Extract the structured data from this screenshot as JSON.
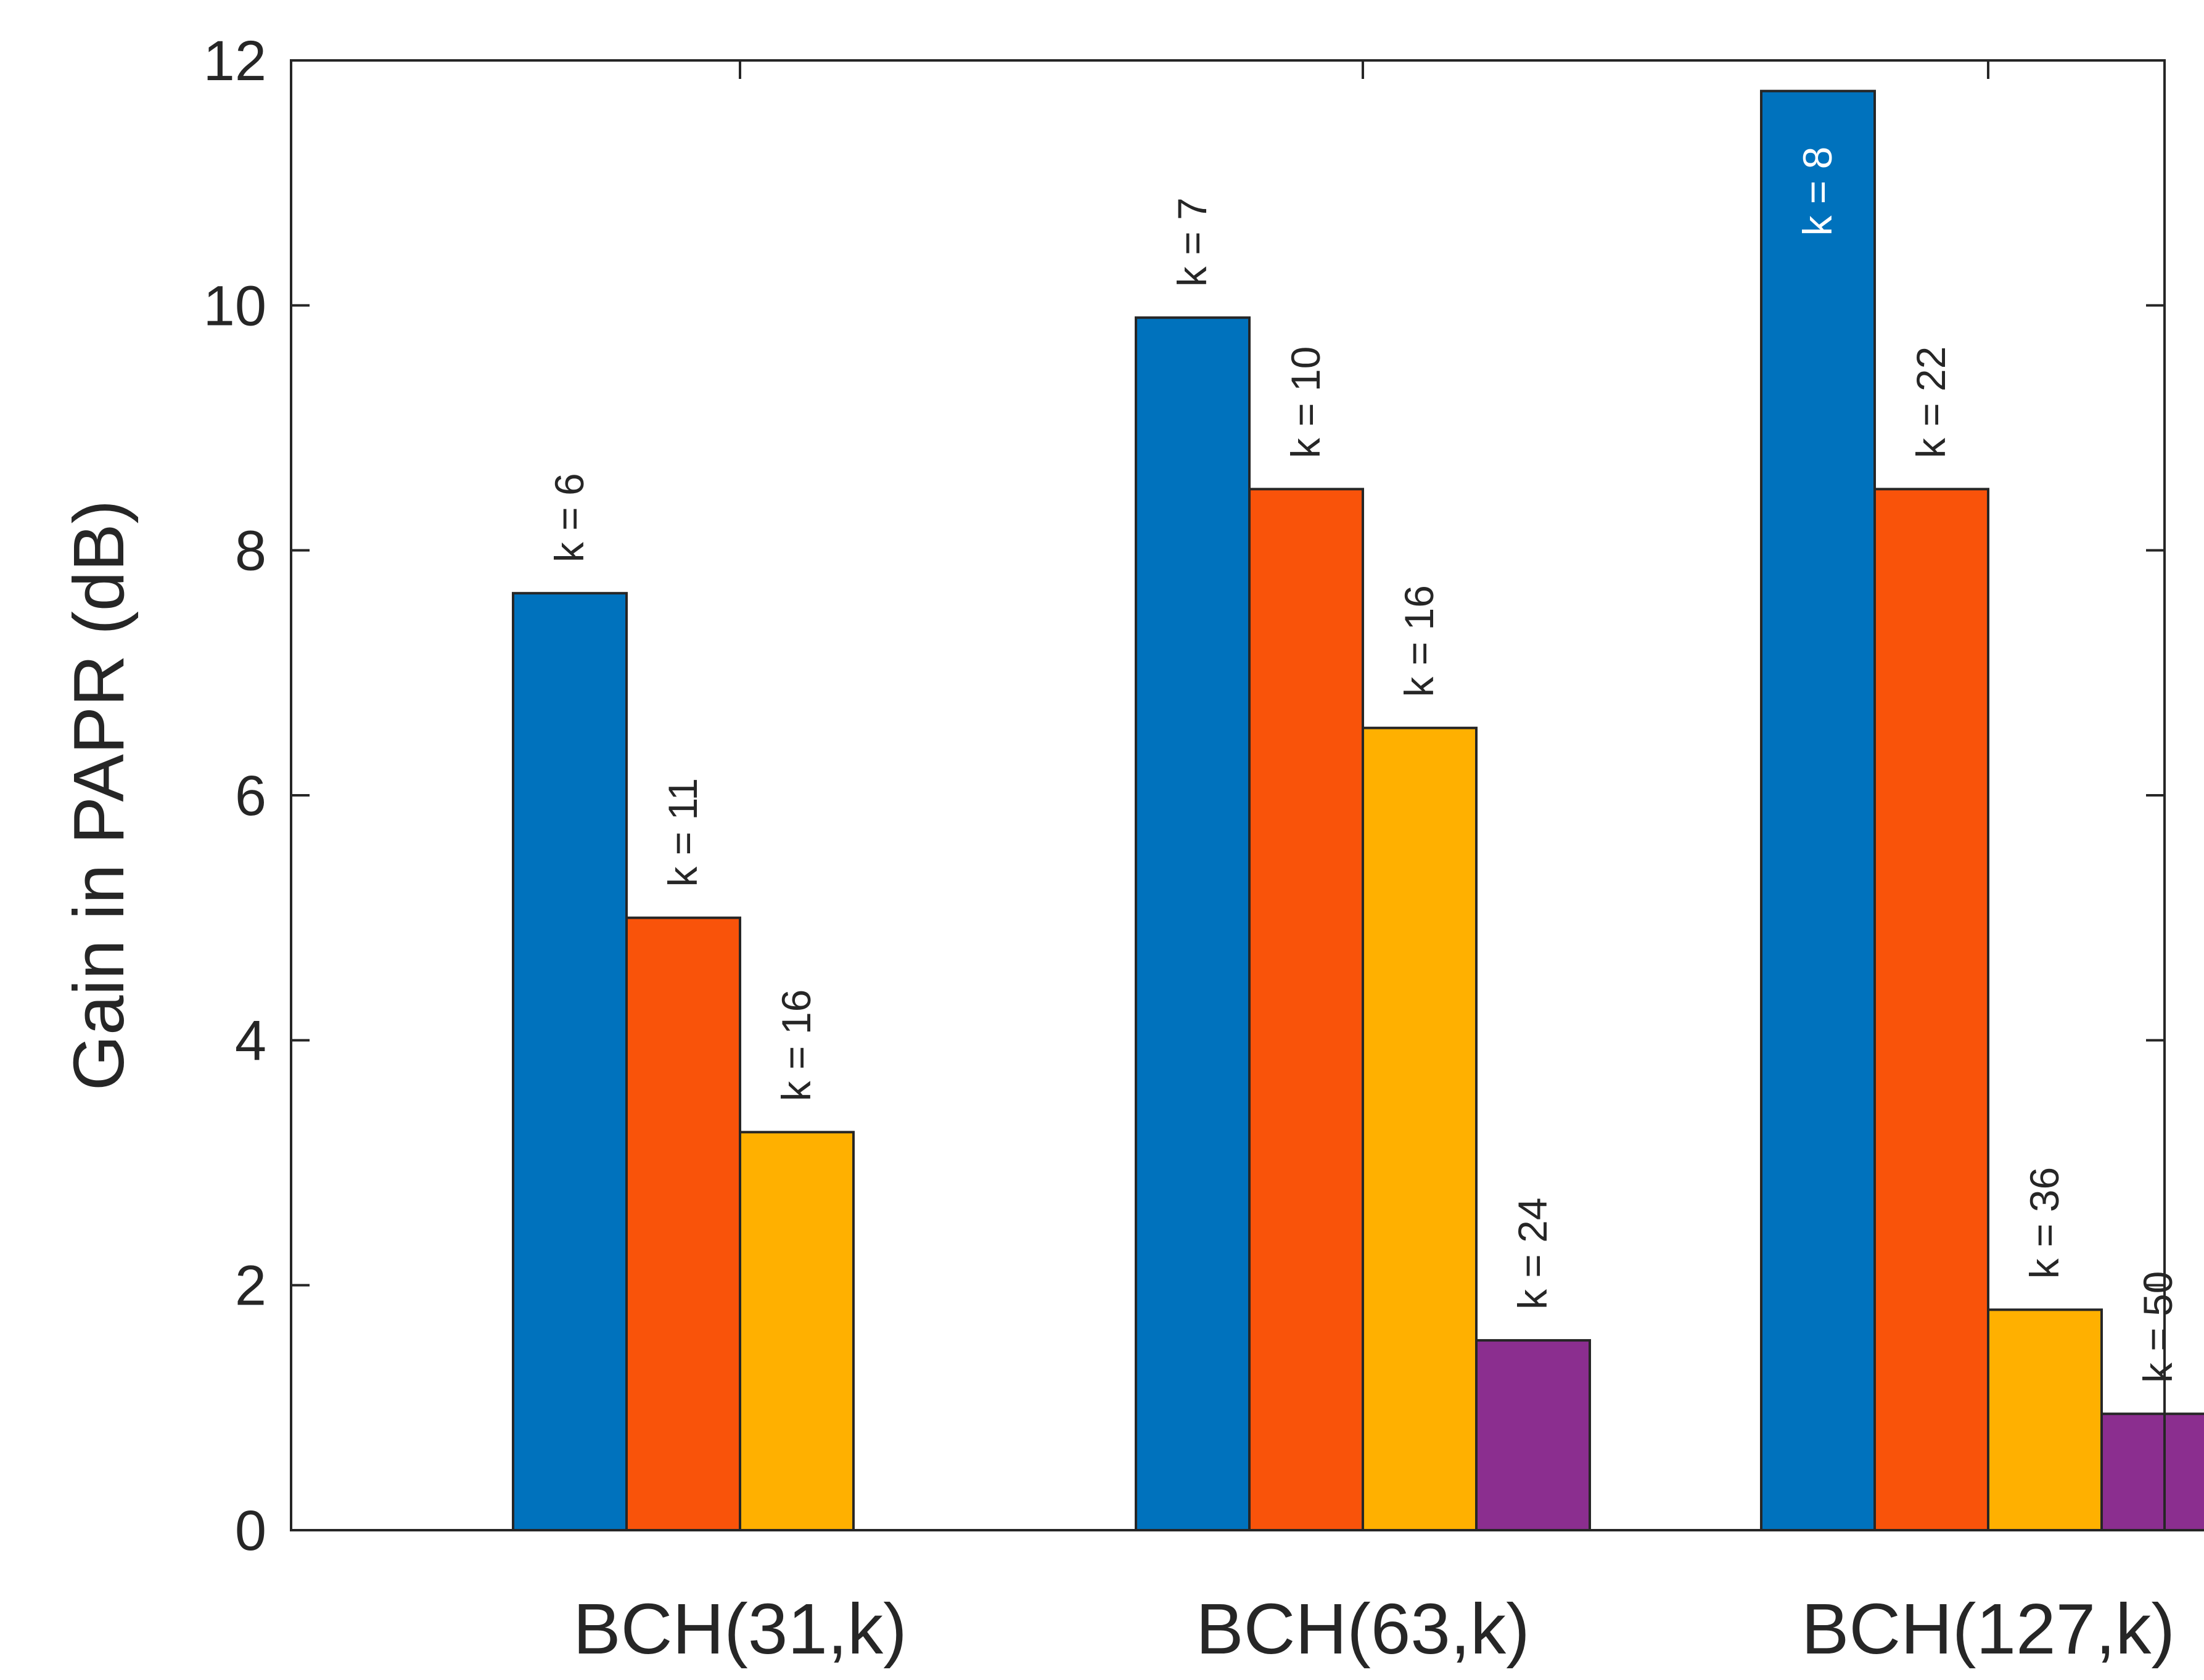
{
  "chart_data": {
    "type": "bar",
    "ylabel": "Gain in PAPR (dB)",
    "xlabel": "",
    "ylim": [
      0,
      12
    ],
    "yticks": [
      0,
      2,
      4,
      6,
      8,
      10,
      12
    ],
    "categories": [
      "BCH(31,k)",
      "BCH(63,k)",
      "BCH(127,k)"
    ],
    "series_colors": [
      "#0072BD",
      "#F9530A",
      "#FFB000",
      "#8B2E8F"
    ],
    "groups": [
      {
        "bars": [
          {
            "value": 7.65,
            "label": "k = 6"
          },
          {
            "value": 5.0,
            "label": "k = 11"
          },
          {
            "value": 3.25,
            "label": "k = 16"
          },
          {
            "value": 0,
            "label": ""
          }
        ]
      },
      {
        "bars": [
          {
            "value": 9.9,
            "label": "k = 7"
          },
          {
            "value": 8.5,
            "label": "k = 10"
          },
          {
            "value": 6.55,
            "label": "k = 16"
          },
          {
            "value": 1.55,
            "label": "k = 24"
          }
        ]
      },
      {
        "bars": [
          {
            "value": 11.75,
            "label": "k = 8",
            "label_inside": true
          },
          {
            "value": 8.5,
            "label": "k = 22"
          },
          {
            "value": 1.8,
            "label": "k = 36"
          },
          {
            "value": 0.95,
            "label": "k = 50"
          }
        ]
      }
    ]
  }
}
